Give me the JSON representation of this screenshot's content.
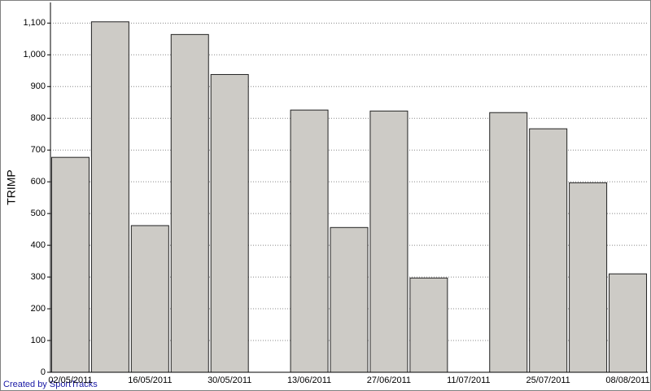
{
  "chart_data": {
    "type": "bar",
    "y_label": "TRIMP",
    "categories": [
      "02/05/2011",
      null,
      "16/05/2011",
      null,
      "30/05/2011",
      null,
      "13/06/2011",
      null,
      "27/06/2011",
      null,
      "11/07/2011",
      null,
      "25/07/2011",
      null,
      "08/08/2011"
    ],
    "values": [
      677,
      1104,
      462,
      1064,
      938,
      null,
      826,
      456,
      823,
      297,
      null,
      818,
      767,
      597,
      310
    ],
    "color": "#cdcbc6",
    "ylim": [
      0,
      1165
    ],
    "yticks": [
      0,
      100,
      200,
      300,
      400,
      500,
      600,
      700,
      800,
      900,
      {
        "value": 1000,
        "label": "1,000"
      },
      {
        "value": 1100,
        "label": "1,100"
      }
    ],
    "grid": true
  },
  "footer": "Created by SportTracks"
}
